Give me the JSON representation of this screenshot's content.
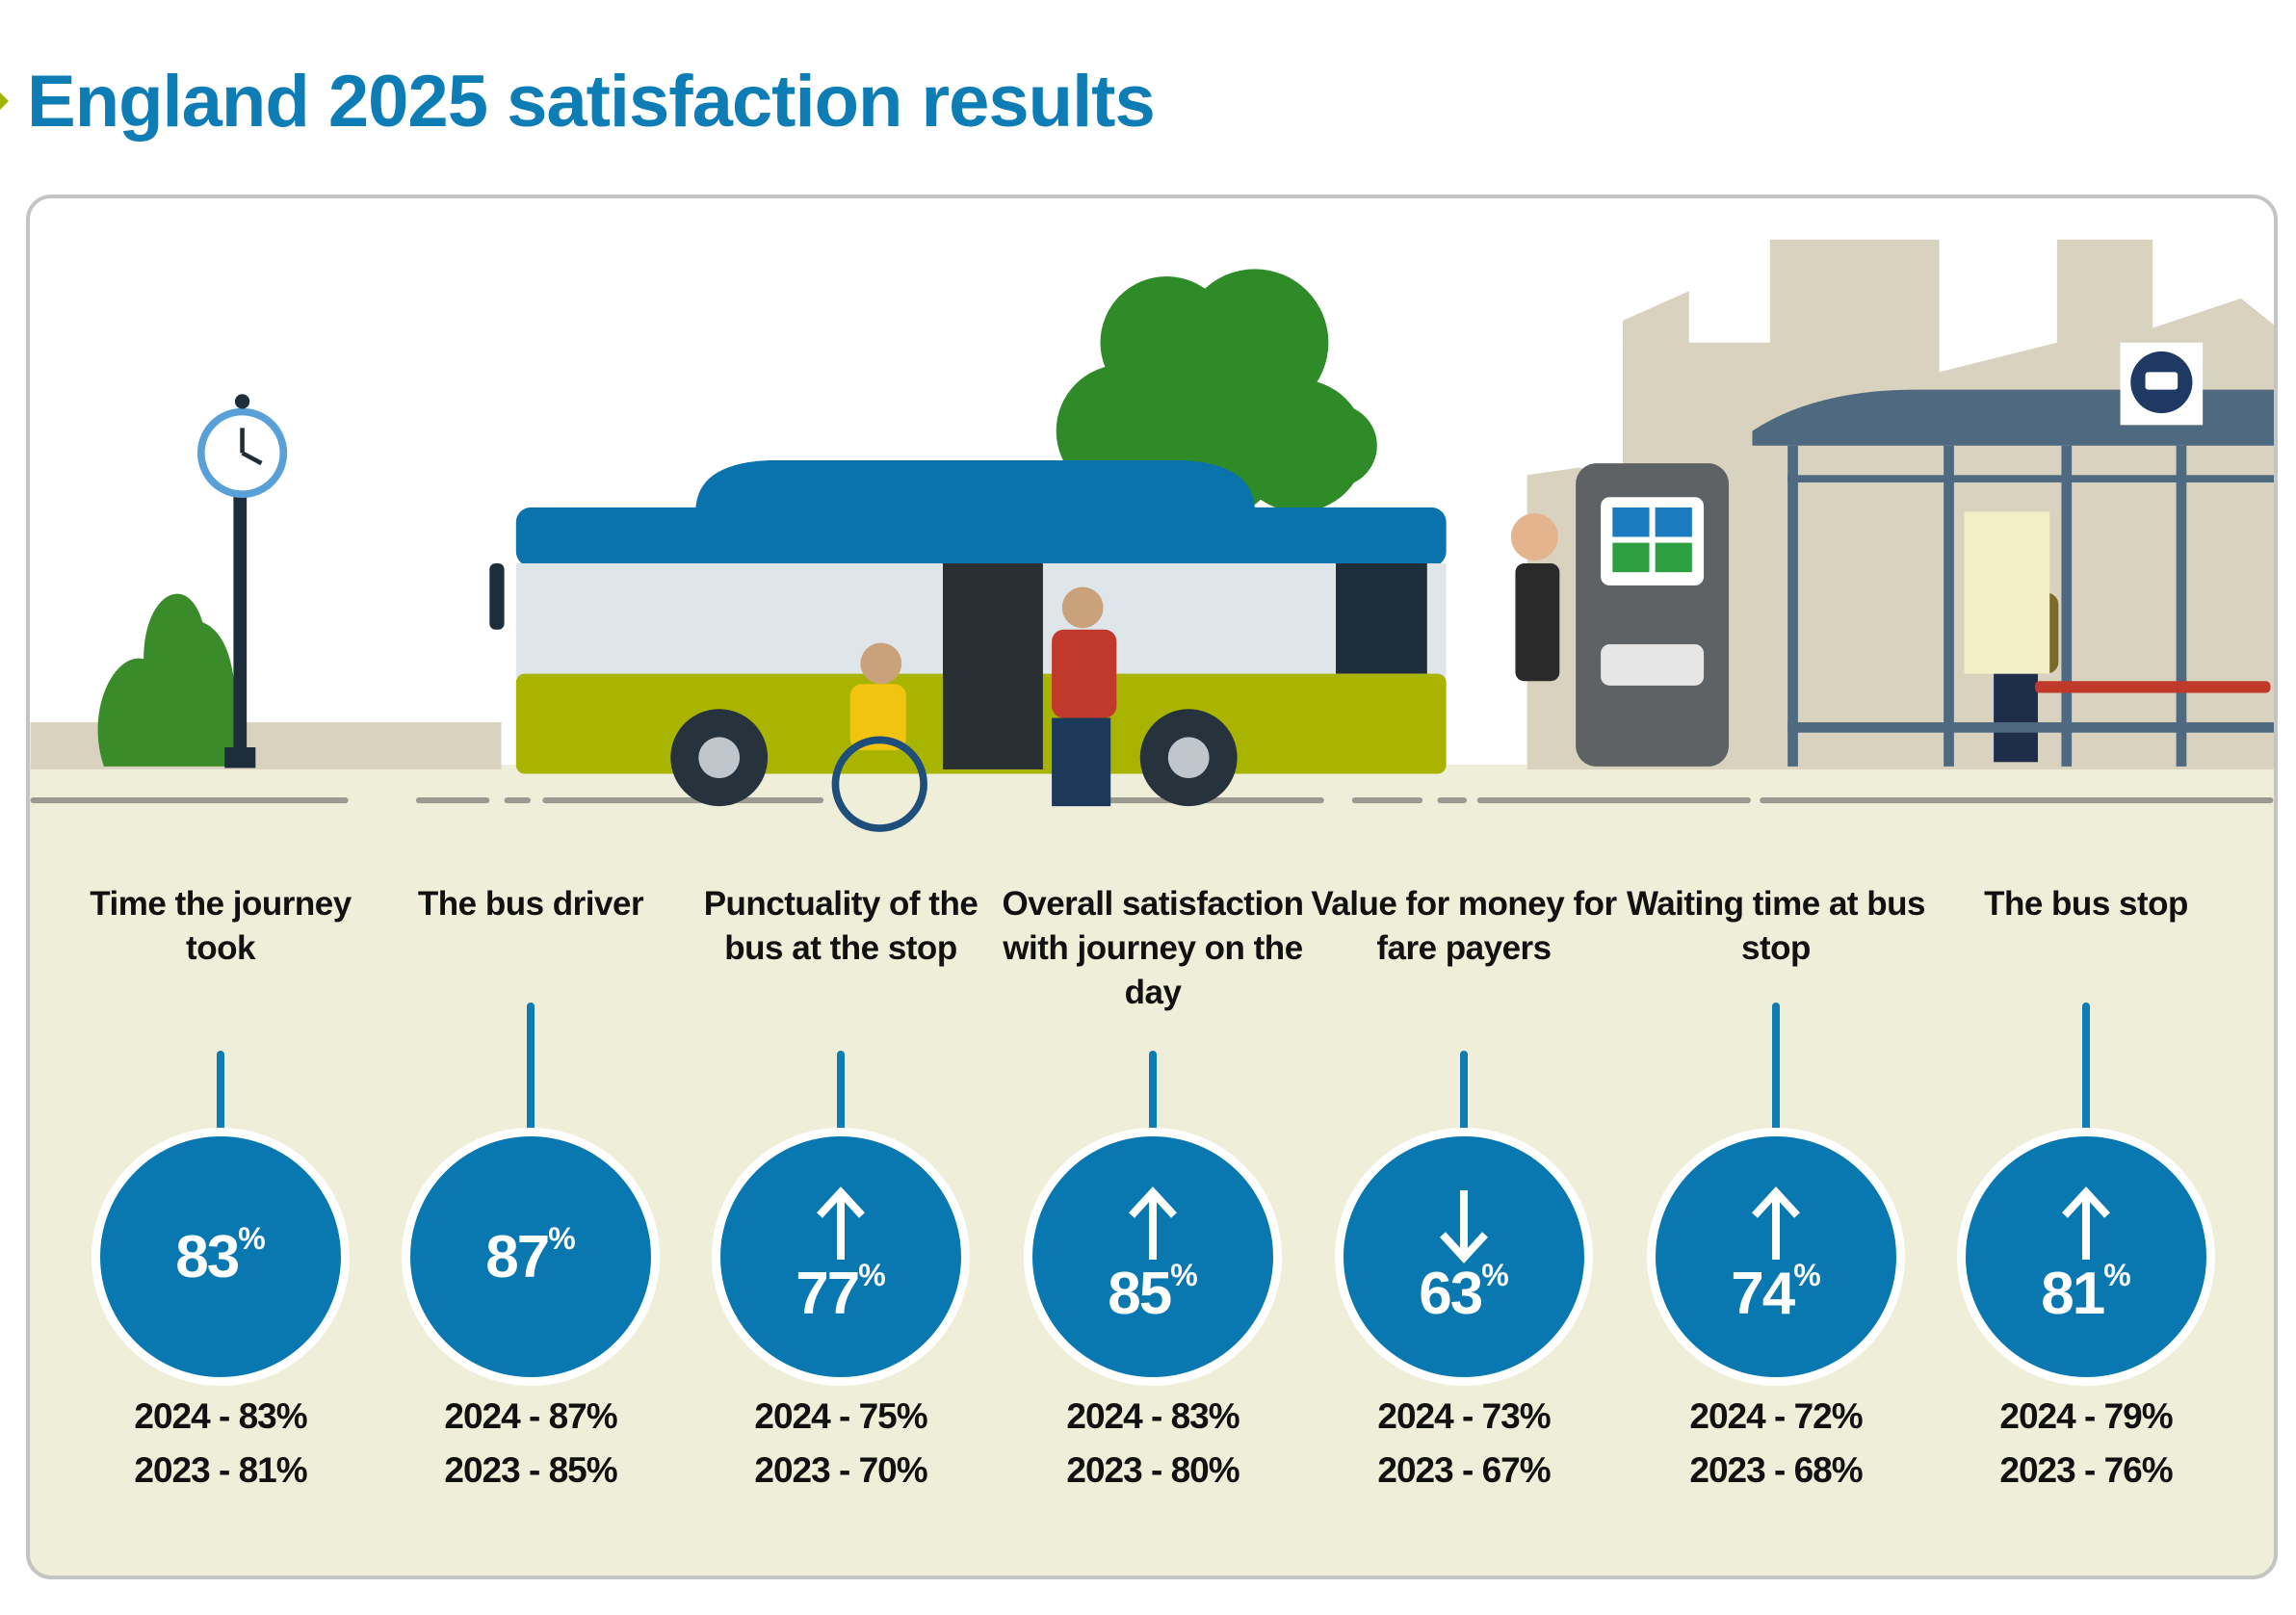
{
  "title": "England 2025 satisfaction results",
  "colors": {
    "accent": "#0a78b0",
    "ground": "#eeeed9",
    "bus_body": "#a8b400",
    "title": "#0f7db5"
  },
  "metrics": [
    {
      "label": "Time the journey took",
      "value": "83",
      "unit": "%",
      "trend": "none",
      "y2024": "2024 - 83%",
      "y2023": "2023 - 81%"
    },
    {
      "label": "The bus driver",
      "value": "87",
      "unit": "%",
      "trend": "none",
      "y2024": "2024 - 87%",
      "y2023": "2023 - 85%"
    },
    {
      "label": "Punctuality of the bus at the stop",
      "value": "77",
      "unit": "%",
      "trend": "up",
      "y2024": "2024 - 75%",
      "y2023": "2023 - 70%"
    },
    {
      "label": "Overall satisfaction with journey on the day",
      "value": "85",
      "unit": "%",
      "trend": "up",
      "y2024": "2024 - 83%",
      "y2023": "2023 - 80%"
    },
    {
      "label": "Value for money for fare payers",
      "value": "63",
      "unit": "%",
      "trend": "down",
      "y2024": "2024 - 73%",
      "y2023": "2023 - 67%"
    },
    {
      "label": "Waiting time at bus stop",
      "value": "74",
      "unit": "%",
      "trend": "up",
      "y2024": "2024 - 72%",
      "y2023": "2023 - 68%"
    },
    {
      "label": "The bus stop",
      "value": "81",
      "unit": "%",
      "trend": "up",
      "y2024": "2024 - 79%",
      "y2023": "2023 - 76%"
    }
  ],
  "illustration": {
    "icons": [
      "street-clock",
      "bush",
      "bus",
      "tree",
      "ticket-machine",
      "bus-shelter",
      "bus-sign-icon",
      "passengers"
    ]
  }
}
